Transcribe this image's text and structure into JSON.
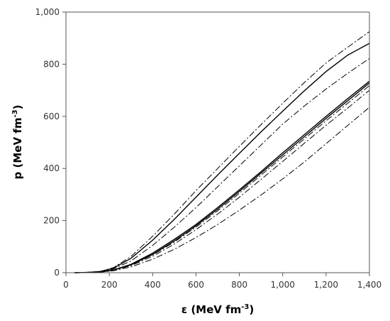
{
  "chart_data": {
    "type": "line",
    "xlabel": "ε (MeV fm",
    "xlabel_sup": "-3",
    "xlabel_end": ")",
    "ylabel": "p (MeV fm",
    "ylabel_sup": "-3",
    "ylabel_end": ")",
    "xlim": [
      0,
      1400
    ],
    "ylim": [
      0,
      1000
    ],
    "xticks": [
      0,
      200,
      400,
      600,
      800,
      1000,
      1200,
      1400
    ],
    "xtick_labels": [
      "0",
      "200",
      "400",
      "600",
      "800",
      "1,000",
      "1,200",
      "1,400"
    ],
    "yticks": [
      0,
      200,
      400,
      600,
      800,
      1000
    ],
    "ytick_labels": [
      "0",
      "200",
      "400",
      "600",
      "800",
      "1,000"
    ],
    "grid": false,
    "line_color": "#000000",
    "series": [
      {
        "style": "dashed",
        "x": [
          40,
          100,
          160,
          220,
          300,
          400,
          500,
          600,
          700,
          800,
          900,
          1000,
          1100,
          1200,
          1300,
          1400
        ],
        "y": [
          0,
          1,
          5,
          20,
          62,
          140,
          225,
          315,
          400,
          485,
          568,
          650,
          730,
          805,
          865,
          925
        ]
      },
      {
        "style": "solid",
        "x": [
          40,
          100,
          160,
          220,
          300,
          400,
          500,
          600,
          700,
          800,
          900,
          1000,
          1100,
          1200,
          1300,
          1400
        ],
        "y": [
          0,
          1,
          5,
          18,
          55,
          125,
          205,
          290,
          375,
          458,
          540,
          620,
          698,
          772,
          835,
          880
        ]
      },
      {
        "style": "dashed",
        "x": [
          40,
          100,
          160,
          220,
          300,
          400,
          500,
          600,
          700,
          800,
          900,
          1000,
          1100,
          1200,
          1300,
          1400
        ],
        "y": [
          0,
          1,
          4,
          15,
          45,
          105,
          175,
          250,
          330,
          410,
          490,
          570,
          640,
          705,
          765,
          822
        ]
      },
      {
        "style": "solid",
        "x": [
          40,
          100,
          160,
          220,
          300,
          400,
          500,
          600,
          700,
          800,
          900,
          1000,
          1100,
          1200,
          1300,
          1400
        ],
        "y": [
          0,
          1,
          3,
          11,
          32,
          75,
          128,
          185,
          250,
          318,
          388,
          460,
          530,
          600,
          668,
          735
        ]
      },
      {
        "style": "solid",
        "x": [
          40,
          100,
          160,
          220,
          300,
          400,
          500,
          600,
          700,
          800,
          900,
          1000,
          1100,
          1200,
          1300,
          1400
        ],
        "y": [
          0,
          1,
          3,
          10,
          30,
          70,
          122,
          180,
          244,
          312,
          382,
          452,
          522,
          592,
          660,
          728
        ]
      },
      {
        "style": "dashed",
        "x": [
          40,
          100,
          160,
          220,
          300,
          400,
          500,
          600,
          700,
          800,
          900,
          1000,
          1100,
          1200,
          1300,
          1400
        ],
        "y": [
          0,
          1,
          3,
          10,
          29,
          68,
          118,
          175,
          238,
          305,
          374,
          444,
          514,
          583,
          650,
          718
        ]
      },
      {
        "style": "dashed",
        "x": [
          40,
          100,
          160,
          220,
          300,
          400,
          500,
          600,
          700,
          800,
          900,
          1000,
          1100,
          1200,
          1300,
          1400
        ],
        "y": [
          0,
          1,
          3,
          9,
          27,
          63,
          110,
          165,
          225,
          290,
          358,
          427,
          497,
          566,
          632,
          700
        ]
      },
      {
        "style": "dashed",
        "x": [
          40,
          100,
          160,
          220,
          300,
          400,
          500,
          600,
          700,
          800,
          900,
          1000,
          1100,
          1200,
          1300,
          1400
        ],
        "y": [
          0,
          1,
          2,
          8,
          22,
          52,
          90,
          135,
          185,
          240,
          298,
          360,
          425,
          495,
          565,
          635
        ]
      }
    ]
  }
}
